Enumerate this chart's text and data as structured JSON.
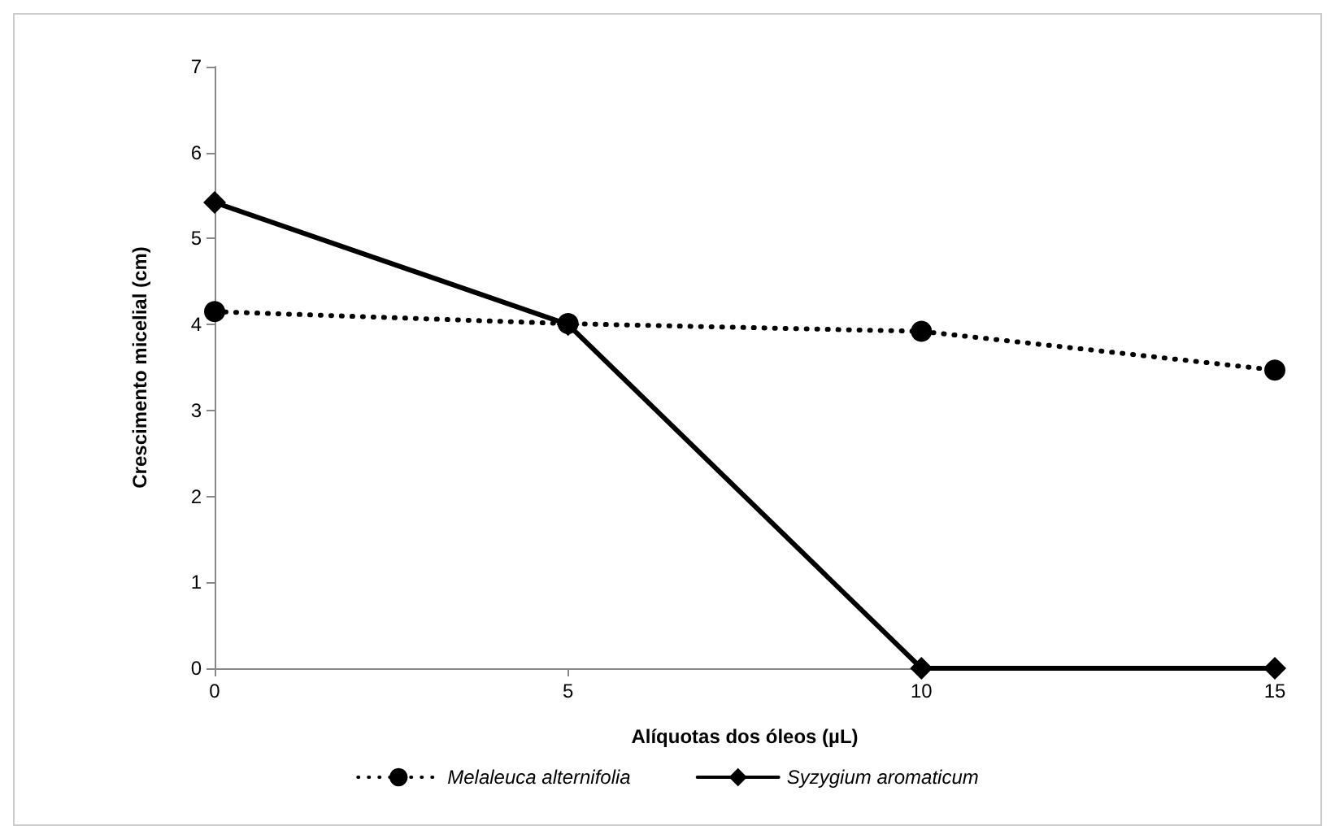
{
  "chart_data": {
    "type": "line",
    "xlabel": "Alíquotas dos óleos (µL)",
    "ylabel": "Crescimento micelial (cm)",
    "x": [
      0,
      5,
      10,
      15
    ],
    "xlim": [
      0,
      15
    ],
    "xticks": [
      0,
      5,
      10,
      15
    ],
    "ylim": [
      0,
      7
    ],
    "yticks": [
      0,
      1,
      2,
      3,
      4,
      5,
      6,
      7
    ],
    "grid": false,
    "legend": "bottom",
    "series": [
      {
        "name": "Melaleuca alternifolia",
        "color": "#000000",
        "values": [
          4.15,
          4.01,
          3.92,
          3.47
        ],
        "marker": "circle",
        "line_style": "dotted"
      },
      {
        "name": "Syzygium aromaticum",
        "color": "#000000",
        "values": [
          5.42,
          4.0,
          0,
          0
        ],
        "marker": "diamond",
        "line_style": "solid"
      }
    ]
  }
}
